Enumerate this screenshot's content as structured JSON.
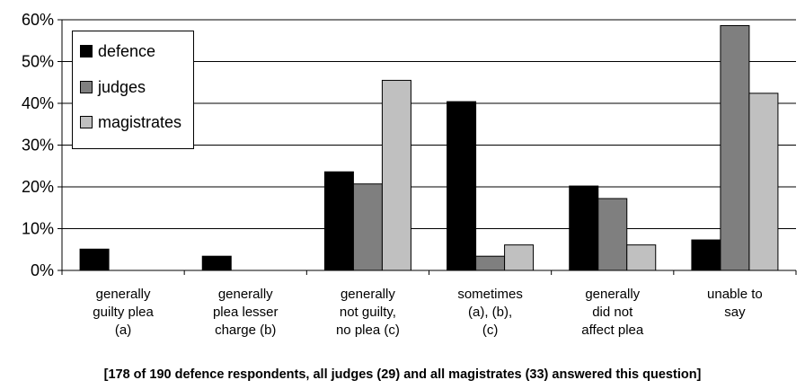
{
  "chart_data": {
    "type": "bar",
    "categories": [
      [
        "generally",
        "guilty plea",
        "(a)"
      ],
      [
        "generally",
        "plea lesser",
        "charge (b)"
      ],
      [
        "generally",
        "not guilty,",
        "no plea (c)"
      ],
      [
        "sometimes",
        "(a),  (b),",
        "(c)"
      ],
      [
        "generally",
        "did not",
        "affect plea"
      ],
      [
        "unable to",
        "say"
      ]
    ],
    "series": [
      {
        "name": "defence",
        "color": "#000000",
        "values": [
          5.1,
          3.4,
          23.6,
          40.4,
          20.2,
          7.3
        ]
      },
      {
        "name": "judges",
        "color": "#7f7f7f",
        "values": [
          0,
          0,
          20.7,
          3.4,
          17.2,
          58.6
        ]
      },
      {
        "name": "magistrates",
        "color": "#c0c0c0",
        "values": [
          0,
          0,
          45.5,
          6.1,
          6.1,
          42.4
        ]
      }
    ],
    "ylim": [
      0,
      60
    ],
    "yticks": [
      "0%",
      "10%",
      "20%",
      "30%",
      "40%",
      "50%",
      "60%"
    ],
    "grid": true,
    "legend_position": "top-left",
    "footnote": "[178 of 190 defence respondents, all judges (29) and all magistrates (33) answered this question]"
  }
}
